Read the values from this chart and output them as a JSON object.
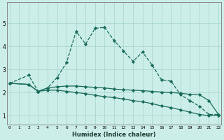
{
  "xlabel": "Humidex (Indice chaleur)",
  "bg_color": "#cceee8",
  "grid_color": "#aad8d0",
  "line_color": "#1a6b5a",
  "x_ticks": [
    0,
    1,
    2,
    3,
    4,
    5,
    6,
    7,
    8,
    9,
    10,
    11,
    12,
    13,
    14,
    15,
    16,
    17,
    18,
    19,
    20,
    21,
    22
  ],
  "ylim": [
    0.6,
    5.9
  ],
  "xlim": [
    -0.3,
    22.3
  ],
  "series": {
    "main": {
      "x": [
        0,
        2,
        3,
        4,
        5,
        6,
        7,
        8,
        9,
        10,
        11,
        12,
        13,
        14,
        15,
        16,
        17,
        18,
        19,
        20,
        21,
        22
      ],
      "y": [
        2.4,
        2.75,
        2.05,
        2.2,
        2.65,
        3.3,
        4.65,
        4.1,
        4.78,
        4.82,
        4.25,
        3.8,
        3.35,
        3.75,
        3.2,
        2.55,
        2.5,
        1.9,
        1.65,
        1.4,
        1.05,
        1.05
      ]
    },
    "upper": {
      "x": [
        0,
        2,
        3,
        4,
        5,
        6,
        7,
        8,
        9,
        10,
        11,
        12,
        13,
        14,
        15,
        16,
        17,
        18,
        19,
        20,
        21,
        22
      ],
      "y": [
        2.4,
        2.35,
        2.05,
        2.2,
        2.25,
        2.28,
        2.28,
        2.25,
        2.22,
        2.2,
        2.15,
        2.12,
        2.1,
        2.08,
        2.05,
        2.02,
        2.0,
        1.97,
        1.92,
        1.9,
        1.65,
        1.05
      ]
    },
    "lower": {
      "x": [
        0,
        2,
        3,
        4,
        5,
        6,
        7,
        8,
        9,
        10,
        11,
        12,
        13,
        14,
        15,
        16,
        17,
        18,
        19,
        20,
        21,
        22
      ],
      "y": [
        2.4,
        2.35,
        2.05,
        2.1,
        2.1,
        2.05,
        2.0,
        1.95,
        1.88,
        1.82,
        1.78,
        1.72,
        1.65,
        1.6,
        1.52,
        1.42,
        1.35,
        1.25,
        1.15,
        1.05,
        1.0,
        1.0
      ]
    }
  }
}
